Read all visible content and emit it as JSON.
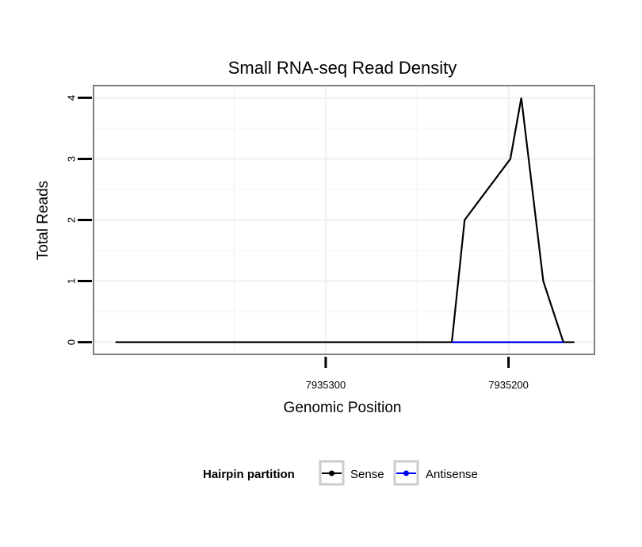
{
  "chart_data": {
    "type": "line",
    "title": "Small RNA-seq Read Density",
    "xlabel": "Genomic Position",
    "ylabel": "Total Reads",
    "x_reversed": true,
    "xlim": [
      7935427,
      7935153
    ],
    "ylim": [
      -0.2,
      4.2
    ],
    "x_ticks": [
      7935300,
      7935200
    ],
    "x_tick_labels": [
      "7935300",
      "7935200"
    ],
    "y_ticks": [
      0,
      1,
      2,
      3,
      4
    ],
    "y_tick_labels": [
      "0",
      "1",
      "2",
      "3",
      "4"
    ],
    "grid": true,
    "legend": {
      "title": "Hairpin partition",
      "position": "bottom",
      "entries": [
        "Sense",
        "Antisense"
      ]
    },
    "series": [
      {
        "name": "Sense",
        "color": "#000000",
        "x": [
          7935415,
          7935170,
          7935170,
          7935181,
          7935181,
          7935189,
          7935189,
          7935193,
          7935193,
          7935199,
          7935199,
          7935224,
          7935224,
          7935231,
          7935231,
          7935164
        ],
        "y": [
          0,
          0,
          0,
          1,
          1,
          3,
          3,
          4,
          4,
          3,
          3,
          2,
          2,
          0,
          0,
          0
        ]
      },
      {
        "name": "Antisense",
        "color": "#0000ff",
        "x": [
          7935231,
          7935170
        ],
        "y": [
          0,
          0
        ]
      }
    ]
  }
}
